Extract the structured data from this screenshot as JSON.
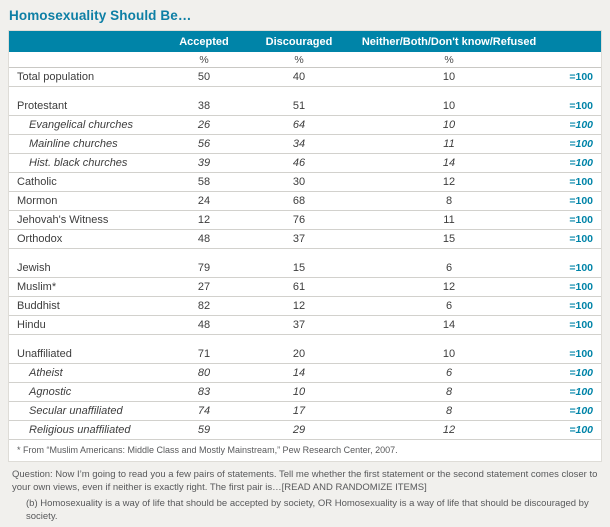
{
  "title": "Homosexuality Should Be…",
  "table": {
    "unit": "%",
    "total_label": "=100"
  },
  "chart_data": {
    "type": "table",
    "title": "Homosexuality Should Be…",
    "columns": [
      "Accepted",
      "Discouraged",
      "Neither/Both/Don't know/Refused",
      "=100"
    ],
    "unit": "percent of each group, rows sum to 100",
    "rows": [
      {
        "label": "Total population",
        "accepted": 50,
        "discouraged": 40,
        "neither": 10,
        "style": "normal"
      },
      {
        "spacer": true
      },
      {
        "label": "Protestant",
        "accepted": 38,
        "discouraged": 51,
        "neither": 10,
        "style": "normal"
      },
      {
        "label": "Evangelical churches",
        "accepted": 26,
        "discouraged": 64,
        "neither": 10,
        "style": "italic"
      },
      {
        "label": "Mainline churches",
        "accepted": 56,
        "discouraged": 34,
        "neither": 11,
        "style": "italic"
      },
      {
        "label": "Hist. black churches",
        "accepted": 39,
        "discouraged": 46,
        "neither": 14,
        "style": "italic"
      },
      {
        "label": "Catholic",
        "accepted": 58,
        "discouraged": 30,
        "neither": 12,
        "style": "normal"
      },
      {
        "label": "Mormon",
        "accepted": 24,
        "discouraged": 68,
        "neither": 8,
        "style": "normal"
      },
      {
        "label": "Jehovah's Witness",
        "accepted": 12,
        "discouraged": 76,
        "neither": 11,
        "style": "normal"
      },
      {
        "label": "Orthodox",
        "accepted": 48,
        "discouraged": 37,
        "neither": 15,
        "style": "normal"
      },
      {
        "spacer": true
      },
      {
        "label": "Jewish",
        "accepted": 79,
        "discouraged": 15,
        "neither": 6,
        "style": "normal"
      },
      {
        "label": "Muslim*",
        "accepted": 27,
        "discouraged": 61,
        "neither": 12,
        "style": "normal"
      },
      {
        "label": "Buddhist",
        "accepted": 82,
        "discouraged": 12,
        "neither": 6,
        "style": "normal"
      },
      {
        "label": "Hindu",
        "accepted": 48,
        "discouraged": 37,
        "neither": 14,
        "style": "normal"
      },
      {
        "spacer": true
      },
      {
        "label": "Unaffiliated",
        "accepted": 71,
        "discouraged": 20,
        "neither": 10,
        "style": "normal"
      },
      {
        "label": "Atheist",
        "accepted": 80,
        "discouraged": 14,
        "neither": 6,
        "style": "italic"
      },
      {
        "label": "Agnostic",
        "accepted": 83,
        "discouraged": 10,
        "neither": 8,
        "style": "italic"
      },
      {
        "label": "Secular unaffiliated",
        "accepted": 74,
        "discouraged": 17,
        "neither": 8,
        "style": "italic"
      },
      {
        "label": "Religious unaffiliated",
        "accepted": 59,
        "discouraged": 29,
        "neither": 12,
        "style": "italic"
      }
    ],
    "row_total": 100,
    "layout": "data table with group spacer rows; subcategory rows italic and indented"
  },
  "footnotes": {
    "asterisk": "* From “Muslim Americans: Middle Class and Mostly Mainstream,” Pew Research Center, 2007.",
    "question": "Question: Now I’m going to read you a few pairs of statements. Tell me whether the first statement or the second statement comes closer to your own views, even if neither is exactly right. The first pair is…[READ AND RANDOMIZE ITEMS]",
    "question_b": "(b) Homosexuality is a way of life that should be accepted by society, OR Homosexuality is a way of life that should be discouraged by society."
  },
  "colors": {
    "header_bg": "#0084a8",
    "title_text": "#0e7fa5",
    "total_text": "#0084a8",
    "page_bg": "#f1f0ed"
  }
}
